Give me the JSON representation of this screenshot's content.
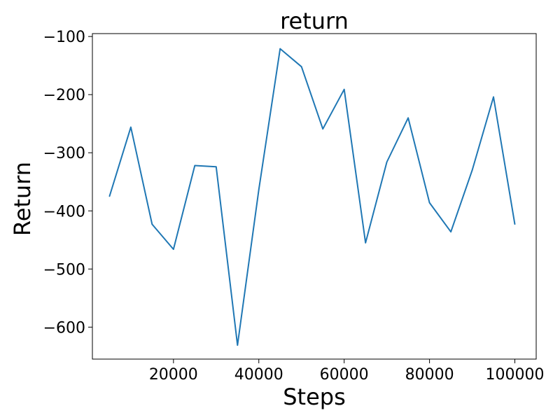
{
  "chart_data": {
    "type": "line",
    "title": "return",
    "xlabel": "Steps",
    "ylabel": "Return",
    "xlim": [
      1000,
      105000
    ],
    "ylim": [
      -655,
      -95
    ],
    "xticks": [
      20000,
      40000,
      60000,
      80000,
      100000
    ],
    "xtick_labels": [
      "20000",
      "40000",
      "60000",
      "80000",
      "100000"
    ],
    "yticks": [
      -600,
      -500,
      -400,
      -300,
      -200,
      -100
    ],
    "ytick_labels": [
      "−600",
      "−500",
      "−400",
      "−300",
      "−200",
      "−100"
    ],
    "grid": false,
    "line_color": "#1f77b4",
    "series": [
      {
        "x": [
          5000,
          10000,
          15000,
          20000,
          25000,
          30000,
          35000,
          40000,
          45000,
          50000,
          55000,
          60000,
          65000,
          70000,
          75000,
          80000,
          85000,
          90000,
          95000,
          100000
        ],
        "values": [
          -375,
          -256,
          -423,
          -466,
          -322,
          -324,
          -631,
          -363,
          -121,
          -152,
          -259,
          -191,
          -455,
          -316,
          -240,
          -386,
          -436,
          -330,
          -204,
          -423
        ]
      }
    ]
  }
}
